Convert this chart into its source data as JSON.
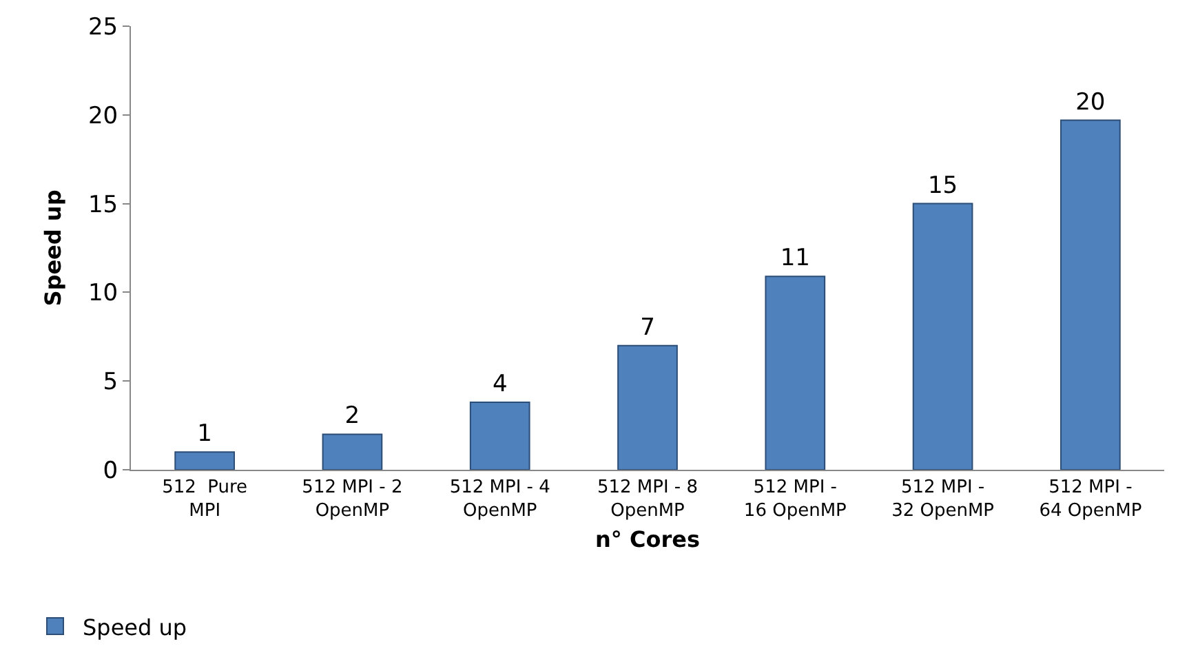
{
  "chart_data": {
    "type": "bar",
    "xlabel": "n° Cores",
    "ylabel": "Speed up",
    "categories": [
      "512  Pure MPI",
      "512 MPI - 2 OpenMP",
      "512 MPI - 4 OpenMP",
      "512 MPI - 8 OpenMP",
      "512 MPI - 16 OpenMP",
      "512 MPI - 32 OpenMP",
      "512 MPI - 64 OpenMP"
    ],
    "series": [
      {
        "name": "Speed up",
        "color": "#4f81bd",
        "values": [
          1.0,
          2.0,
          3.8,
          7.0,
          10.9,
          15.0,
          19.7
        ],
        "value_labels": [
          "1",
          "2",
          "4",
          "7",
          "11",
          "15",
          "20"
        ]
      }
    ],
    "ylim": [
      0,
      25
    ],
    "yticks": [
      0,
      5,
      10,
      15,
      20,
      25
    ],
    "legend": "bottom left"
  }
}
